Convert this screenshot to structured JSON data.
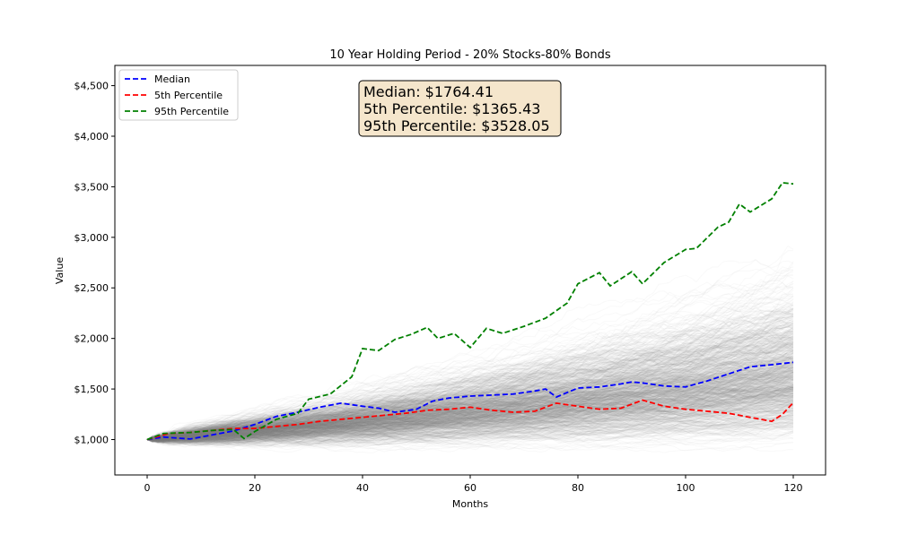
{
  "chart_data": {
    "type": "line",
    "title": "10 Year Holding Period - 20% Stocks-80% Bonds",
    "xlabel": "Months",
    "ylabel": "Value",
    "xlim": [
      -6,
      126
    ],
    "ylim": [
      650,
      4700
    ],
    "x_ticks": [
      0,
      20,
      40,
      60,
      80,
      100,
      120
    ],
    "y_ticks": [
      1000,
      1500,
      2000,
      2500,
      3000,
      3500,
      4000,
      4500
    ],
    "y_tick_labels": [
      "$1,000",
      "$1,500",
      "$2,000",
      "$2,500",
      "$3,000",
      "$3,500",
      "$4,000",
      "$4,500"
    ],
    "grid": false,
    "legend_position": "top-left",
    "background_paths": {
      "count": 1000,
      "color": "#808080",
      "start_value": 1000
    },
    "series": [
      {
        "name": "Median",
        "color": "#0000ff",
        "style": "dashed",
        "points": [
          [
            0,
            1000
          ],
          [
            3,
            1025
          ],
          [
            8,
            1005
          ],
          [
            12,
            1045
          ],
          [
            16,
            1085
          ],
          [
            20,
            1150
          ],
          [
            24,
            1230
          ],
          [
            28,
            1270
          ],
          [
            32,
            1320
          ],
          [
            36,
            1360
          ],
          [
            40,
            1330
          ],
          [
            43,
            1310
          ],
          [
            46,
            1270
          ],
          [
            50,
            1300
          ],
          [
            53,
            1380
          ],
          [
            56,
            1410
          ],
          [
            60,
            1430
          ],
          [
            64,
            1440
          ],
          [
            68,
            1450
          ],
          [
            72,
            1480
          ],
          [
            74,
            1500
          ],
          [
            76,
            1420
          ],
          [
            80,
            1510
          ],
          [
            84,
            1520
          ],
          [
            88,
            1550
          ],
          [
            90,
            1570
          ],
          [
            92,
            1560
          ],
          [
            96,
            1530
          ],
          [
            100,
            1520
          ],
          [
            104,
            1580
          ],
          [
            108,
            1650
          ],
          [
            112,
            1720
          ],
          [
            116,
            1740
          ],
          [
            120,
            1764.41
          ]
        ]
      },
      {
        "name": "5th Percentile",
        "color": "#ff0000",
        "style": "dashed",
        "points": [
          [
            0,
            1000
          ],
          [
            4,
            1060
          ],
          [
            8,
            1070
          ],
          [
            12,
            1090
          ],
          [
            16,
            1110
          ],
          [
            20,
            1110
          ],
          [
            24,
            1130
          ],
          [
            28,
            1150
          ],
          [
            32,
            1180
          ],
          [
            36,
            1200
          ],
          [
            40,
            1220
          ],
          [
            44,
            1240
          ],
          [
            48,
            1260
          ],
          [
            52,
            1290
          ],
          [
            56,
            1300
          ],
          [
            60,
            1320
          ],
          [
            64,
            1290
          ],
          [
            68,
            1270
          ],
          [
            72,
            1280
          ],
          [
            76,
            1360
          ],
          [
            80,
            1330
          ],
          [
            84,
            1300
          ],
          [
            88,
            1310
          ],
          [
            92,
            1390
          ],
          [
            96,
            1330
          ],
          [
            100,
            1300
          ],
          [
            104,
            1280
          ],
          [
            108,
            1260
          ],
          [
            112,
            1220
          ],
          [
            114,
            1200
          ],
          [
            116,
            1180
          ],
          [
            118,
            1250
          ],
          [
            120,
            1365.43
          ]
        ]
      },
      {
        "name": "95th Percentile",
        "color": "#008000",
        "style": "dashed",
        "points": [
          [
            0,
            1000
          ],
          [
            3,
            1060
          ],
          [
            8,
            1070
          ],
          [
            12,
            1090
          ],
          [
            16,
            1100
          ],
          [
            18,
            1010
          ],
          [
            20,
            1080
          ],
          [
            24,
            1200
          ],
          [
            28,
            1260
          ],
          [
            30,
            1400
          ],
          [
            34,
            1450
          ],
          [
            38,
            1620
          ],
          [
            40,
            1900
          ],
          [
            43,
            1880
          ],
          [
            46,
            1990
          ],
          [
            49,
            2040
          ],
          [
            52,
            2110
          ],
          [
            54,
            2000
          ],
          [
            57,
            2050
          ],
          [
            60,
            1910
          ],
          [
            63,
            2100
          ],
          [
            66,
            2050
          ],
          [
            70,
            2120
          ],
          [
            74,
            2200
          ],
          [
            78,
            2350
          ],
          [
            80,
            2540
          ],
          [
            84,
            2650
          ],
          [
            86,
            2520
          ],
          [
            90,
            2660
          ],
          [
            92,
            2540
          ],
          [
            96,
            2750
          ],
          [
            100,
            2880
          ],
          [
            102,
            2890
          ],
          [
            106,
            3100
          ],
          [
            108,
            3150
          ],
          [
            110,
            3330
          ],
          [
            112,
            3250
          ],
          [
            116,
            3380
          ],
          [
            118,
            3540
          ],
          [
            120,
            3528.05
          ]
        ]
      }
    ]
  },
  "stats_box": {
    "lines": [
      "Median: $1764.41",
      "5th Percentile: $1365.43",
      "95th Percentile: $3528.05"
    ],
    "background": "#f5e6cc"
  }
}
